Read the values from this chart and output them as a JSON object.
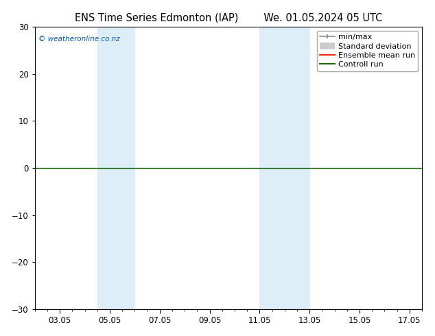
{
  "title_left": "ENS Time Series Edmonton (IAP)",
  "title_right": "We. 01.05.2024 05 UTC",
  "ylim": [
    -30,
    30
  ],
  "yticks": [
    -30,
    -20,
    -10,
    0,
    10,
    20,
    30
  ],
  "xlim": [
    2.0,
    17.5
  ],
  "x_tick_labels": [
    "03.05",
    "05.05",
    "07.05",
    "09.05",
    "11.05",
    "13.05",
    "15.05",
    "17.05"
  ],
  "x_tick_positions": [
    3,
    5,
    7,
    9,
    11,
    13,
    15,
    17
  ],
  "shade_regions": [
    {
      "xmin": 4.5,
      "xmax": 6.0
    },
    {
      "xmin": 11.0,
      "xmax": 13.0
    }
  ],
  "shade_color": "#ddeef8",
  "zero_line_color": "#1a6600",
  "watermark": "© weatheronline.co.nz",
  "watermark_color": "#0055bb",
  "background_color": "#ffffff",
  "plot_background": "#ffffff",
  "title_fontsize": 10.5,
  "tick_fontsize": 8.5,
  "legend_fontsize": 8
}
